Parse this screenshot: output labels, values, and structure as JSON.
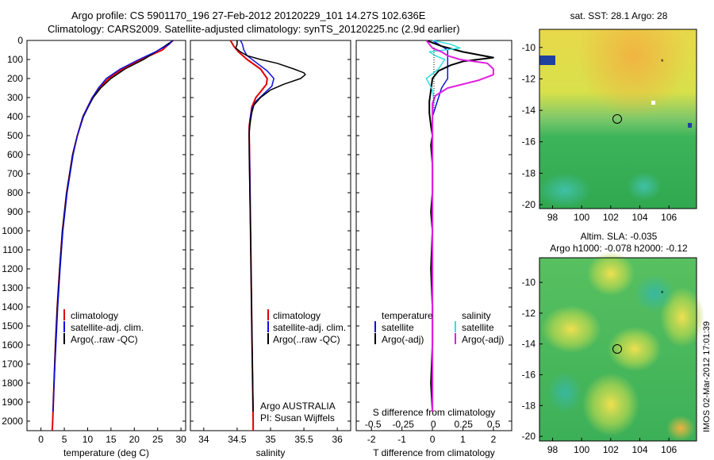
{
  "header": {
    "line1": "Argo profile: CS 5901170_196 27-Feb-2012 20120229_101 14.27S 102.636E",
    "line2": "Climatology: CARS2009. Satellite-adjusted climatology: synTS_20120225.nc (2.9d earlier)"
  },
  "side_stamp": "IMOS 02-Mar-2012 17:01:39",
  "colors": {
    "climatology": "#e00000",
    "satellite": "#1010e0",
    "argo": "#000000",
    "salinity_sat": "#30e0e0",
    "salinity_argo": "#e020e0"
  },
  "depth_ticks": [
    "0",
    "100",
    "200",
    "300",
    "400",
    "500",
    "600",
    "700",
    "800",
    "900",
    "1000",
    "1100",
    "1200",
    "1300",
    "1400",
    "1500",
    "1600",
    "1700",
    "1800",
    "1900",
    "2000"
  ],
  "panel_temp": {
    "xlabel": "temperature (deg C)",
    "xticks": [
      "0",
      "5",
      "10",
      "15",
      "20",
      "25",
      "30"
    ],
    "legend": [
      "climatology",
      "satellite-adj. clim.",
      "Argo(..raw -QC)"
    ]
  },
  "panel_sal": {
    "xlabel": "salinity",
    "xticks": [
      "34",
      "34.5",
      "35",
      "35.5",
      "36"
    ],
    "legend": [
      "climatology",
      "satellite-adj. clim.",
      "Argo(..raw -QC)"
    ],
    "note1": "Argo AUSTRALIA",
    "note2": "PI: Susan Wijffels"
  },
  "panel_diff": {
    "xlabel": "T difference from climatology",
    "xticks": [
      "-2",
      "-1",
      "0",
      "1",
      "2"
    ],
    "top_title": "S difference from climatology",
    "top_ticks": [
      "-0.5",
      "-0.25",
      "0",
      "0.25",
      "0.5"
    ],
    "legend_left_title": "temperature",
    "legend_left": [
      "satellite",
      "Argo(-adj)"
    ],
    "legend_right_title": "salinity",
    "legend_right": [
      "satellite",
      "Argo(-adj)"
    ]
  },
  "map_sst": {
    "title": "sat. SST: 28.1  Argo: 28",
    "yticks": [
      "-10",
      "-12",
      "-14",
      "-16",
      "-18",
      "-20"
    ],
    "xticks": [
      "98",
      "100",
      "102",
      "104",
      "106"
    ]
  },
  "map_sla": {
    "title1": "Altim. SLA: -0.035",
    "title2": "Argo h1000: -0.078 h2000: -0.12",
    "yticks": [
      "-10",
      "-12",
      "-14",
      "-16",
      "-18",
      "-20"
    ],
    "xticks": [
      "98",
      "100",
      "102",
      "104",
      "106"
    ]
  },
  "chart_data": [
    {
      "type": "line",
      "title": "",
      "xlabel": "temperature (deg C)",
      "ylabel": "",
      "xlim": [
        -3,
        31
      ],
      "ylim": [
        2050,
        0
      ],
      "series": [
        {
          "name": "climatology",
          "depth": [
            0,
            50,
            100,
            150,
            200,
            250,
            300,
            350,
            400,
            500,
            600,
            800,
            1000,
            1200,
            1400,
            1600,
            1800,
            2000,
            2050
          ],
          "values": [
            28.3,
            26.0,
            21.5,
            17.5,
            14.5,
            12.5,
            11.0,
            10.0,
            9.0,
            7.8,
            6.8,
            5.5,
            4.6,
            4.0,
            3.5,
            3.1,
            2.8,
            2.5,
            2.4
          ]
        },
        {
          "name": "satellite-adj. clim.",
          "depth": [
            0,
            30,
            100,
            150,
            200,
            250,
            300,
            350,
            400,
            500,
            600,
            800,
            1000,
            1200,
            1400,
            1600,
            1800,
            1950
          ],
          "values": [
            28.3,
            26.5,
            22.0,
            18.0,
            15.0,
            12.8,
            11.2,
            10.1,
            9.1,
            7.8,
            6.8,
            5.5,
            4.6,
            4.0,
            3.5,
            3.1,
            2.8,
            2.6
          ]
        },
        {
          "name": "Argo(..raw -QC)",
          "depth": [
            0,
            20,
            60,
            100,
            150,
            200,
            250,
            300,
            350,
            400,
            500,
            600,
            800,
            1000,
            1200,
            1400,
            1600,
            1800,
            1950
          ],
          "values": [
            28.1,
            27.5,
            24.5,
            21.0,
            17.0,
            14.0,
            12.3,
            11.0,
            10.0,
            9.0,
            7.8,
            6.9,
            5.6,
            4.7,
            4.1,
            3.6,
            3.2,
            2.8,
            2.6
          ]
        }
      ]
    },
    {
      "type": "line",
      "title": "",
      "xlabel": "salinity",
      "ylabel": "",
      "xlim": [
        33.8,
        36.2
      ],
      "ylim": [
        2050,
        0
      ],
      "series": [
        {
          "name": "climatology",
          "depth": [
            0,
            30,
            60,
            100,
            150,
            200,
            230,
            270,
            300,
            350,
            400,
            450,
            500,
            700,
            1000,
            1500,
            2000,
            2050
          ],
          "values": [
            34.4,
            34.45,
            34.52,
            34.65,
            34.85,
            34.95,
            34.94,
            34.85,
            34.78,
            34.72,
            34.7,
            34.68,
            34.68,
            34.69,
            34.7,
            34.72,
            34.74,
            34.74
          ]
        },
        {
          "name": "satellite-adj. clim.",
          "depth": [
            0,
            20,
            50,
            80,
            120,
            160,
            200,
            240,
            280,
            320,
            360,
            420,
            500,
            700,
            1000,
            1500,
            1950
          ],
          "values": [
            34.55,
            34.58,
            34.6,
            34.65,
            34.8,
            34.95,
            35.05,
            35.02,
            34.9,
            34.78,
            34.72,
            34.69,
            34.68,
            34.69,
            34.7,
            34.72,
            34.74
          ]
        },
        {
          "name": "Argo(..raw -QC)",
          "depth": [
            0,
            20,
            40,
            60,
            80,
            100,
            120,
            150,
            170,
            180,
            200,
            230,
            260,
            300,
            340,
            380,
            420,
            480,
            600,
            800,
            1000,
            1500,
            1950
          ],
          "values": [
            34.5,
            34.5,
            34.48,
            34.55,
            34.65,
            34.85,
            35.1,
            35.35,
            35.5,
            35.52,
            35.45,
            35.2,
            35.0,
            34.85,
            34.75,
            34.72,
            34.7,
            34.68,
            34.68,
            34.69,
            34.7,
            34.72,
            34.74
          ]
        }
      ]
    },
    {
      "type": "line",
      "title": "",
      "xlabel": "T difference from climatology",
      "ylabel": "",
      "xlim": [
        -2.5,
        2.6
      ],
      "ylim": [
        2050,
        0
      ],
      "series": [
        {
          "name": "temperature satellite",
          "depth": [
            0,
            50,
            100,
            150,
            200,
            250,
            300,
            350,
            400,
            500,
            800,
            1200,
            1600,
            1950
          ],
          "values": [
            0.0,
            0.5,
            0.5,
            0.5,
            0.5,
            0.3,
            0.2,
            0.1,
            0.0,
            0.0,
            0.0,
            0.0,
            0.0,
            0.0
          ]
        },
        {
          "name": "temperature Argo(-adj)",
          "depth": [
            0,
            30,
            60,
            90,
            110,
            130,
            160,
            200,
            260,
            320,
            380,
            450,
            500,
            550,
            650,
            800,
            900,
            1000,
            1200,
            1400,
            1600,
            1800,
            1950
          ],
          "values": [
            -0.2,
            0.3,
            1.0,
            2.0,
            1.0,
            0.6,
            0.2,
            0.0,
            -0.05,
            -0.1,
            -0.1,
            -0.05,
            0.0,
            -0.05,
            0.0,
            0.0,
            -0.05,
            0.0,
            -0.05,
            0.0,
            0.0,
            -0.05,
            0.0
          ]
        },
        {
          "name": "salinity satellite",
          "depth": [
            0,
            20,
            40,
            60,
            80,
            100,
            150,
            200,
            260,
            320,
            380,
            450,
            500,
            700,
            1000,
            1500,
            1950
          ],
          "values": [
            0.0,
            0.6,
            0.9,
            -0.1,
            0.1,
            0.4,
            0.2,
            -0.2,
            0.0,
            0.05,
            0.0,
            0.0,
            0.0,
            0.0,
            0.0,
            0.0,
            0.0
          ]
        },
        {
          "name": "salinity Argo(-adj)",
          "depth": [
            0,
            20,
            40,
            60,
            80,
            100,
            120,
            150,
            180,
            210,
            250,
            290,
            330,
            370,
            420,
            500,
            700,
            1000,
            1500,
            1950
          ],
          "values": [
            -0.2,
            -0.1,
            0.0,
            0.3,
            0.5,
            0.9,
            1.8,
            2.0,
            2.0,
            1.5,
            0.5,
            0.1,
            0.0,
            0.0,
            0.0,
            0.0,
            0.0,
            0.0,
            0.0,
            0.0
          ]
        }
      ]
    }
  ]
}
